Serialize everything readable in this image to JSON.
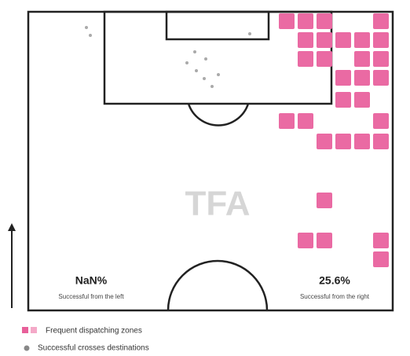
{
  "watermark": "TFA",
  "left": {
    "value": "NaN%",
    "label": "Successful from the left"
  },
  "right": {
    "value": "25.6%",
    "label": "Successful from the right"
  },
  "legend": [
    "Frequent dispatching zones",
    "Successful crosses destinations"
  ]
}
